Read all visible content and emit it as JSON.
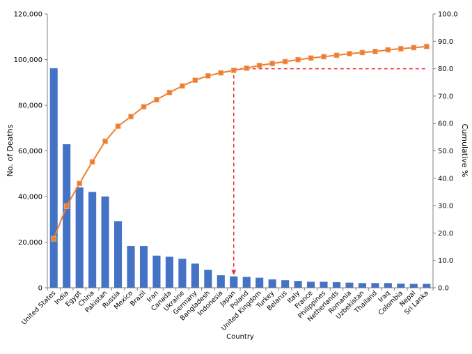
{
  "chart_data": {
    "type": "bar",
    "title": "",
    "xlabel": "Country",
    "ylabel": "No. of Deaths",
    "y2label": "Cumulative %",
    "ylim": [
      0,
      120000
    ],
    "y2lim": [
      0,
      100
    ],
    "yticks": [
      "0",
      "20,000",
      "40,000",
      "60,000",
      "80,000",
      "100,000",
      "120,000"
    ],
    "y2ticks": [
      "0.0",
      "10.0",
      "20.0",
      "30.0",
      "40.0",
      "50.0",
      "60.0",
      "70.0",
      "80.0",
      "90.0",
      "100.0"
    ],
    "grid": false,
    "legend": "none",
    "categories": [
      "United States",
      "India",
      "Egypt",
      "China",
      "Pakistan",
      "Russia",
      "Mexico",
      "Brazil",
      "Iran",
      "Canada",
      "Ukraine",
      "Germany",
      "Bangladesh",
      "Indonesia",
      "Japan",
      "Poland",
      "United Kingdom",
      "Turkey",
      "Belarus",
      "Italy",
      "France",
      "Philippines",
      "Netherlands",
      "Romania",
      "Uzbekistan",
      "Thailand",
      "Iraq",
      "Colombia",
      "Nepal",
      "Sri Lanka"
    ],
    "series": [
      {
        "type": "bar",
        "axis": "left",
        "color": "#4472C4",
        "values": [
          96200,
          62900,
          44000,
          42000,
          40000,
          29200,
          18300,
          18300,
          14100,
          13600,
          12700,
          10600,
          7900,
          5500,
          5000,
          4800,
          4400,
          3700,
          3300,
          3000,
          2650,
          2650,
          2450,
          2250,
          2050,
          2050,
          2050,
          1850,
          1750,
          1750
        ]
      },
      {
        "type": "line",
        "axis": "right",
        "color": "#ED7D31",
        "marker": "square",
        "values": [
          17.9,
          29.8,
          38.1,
          46.0,
          53.5,
          59.0,
          62.5,
          66.1,
          68.7,
          71.3,
          73.7,
          75.8,
          77.4,
          78.5,
          79.4,
          80.2,
          81.2,
          81.9,
          82.6,
          83.3,
          83.9,
          84.4,
          84.9,
          85.5,
          85.9,
          86.3,
          86.9,
          87.3,
          87.7,
          88.1
        ]
      }
    ],
    "annotations": [
      {
        "type": "dashed-line",
        "color": "#E8313A",
        "description_value": 80,
        "axis": "right",
        "from_category": "Japan"
      },
      {
        "type": "dashed-arrow",
        "color": "#E8313A",
        "category": "Japan"
      }
    ]
  }
}
